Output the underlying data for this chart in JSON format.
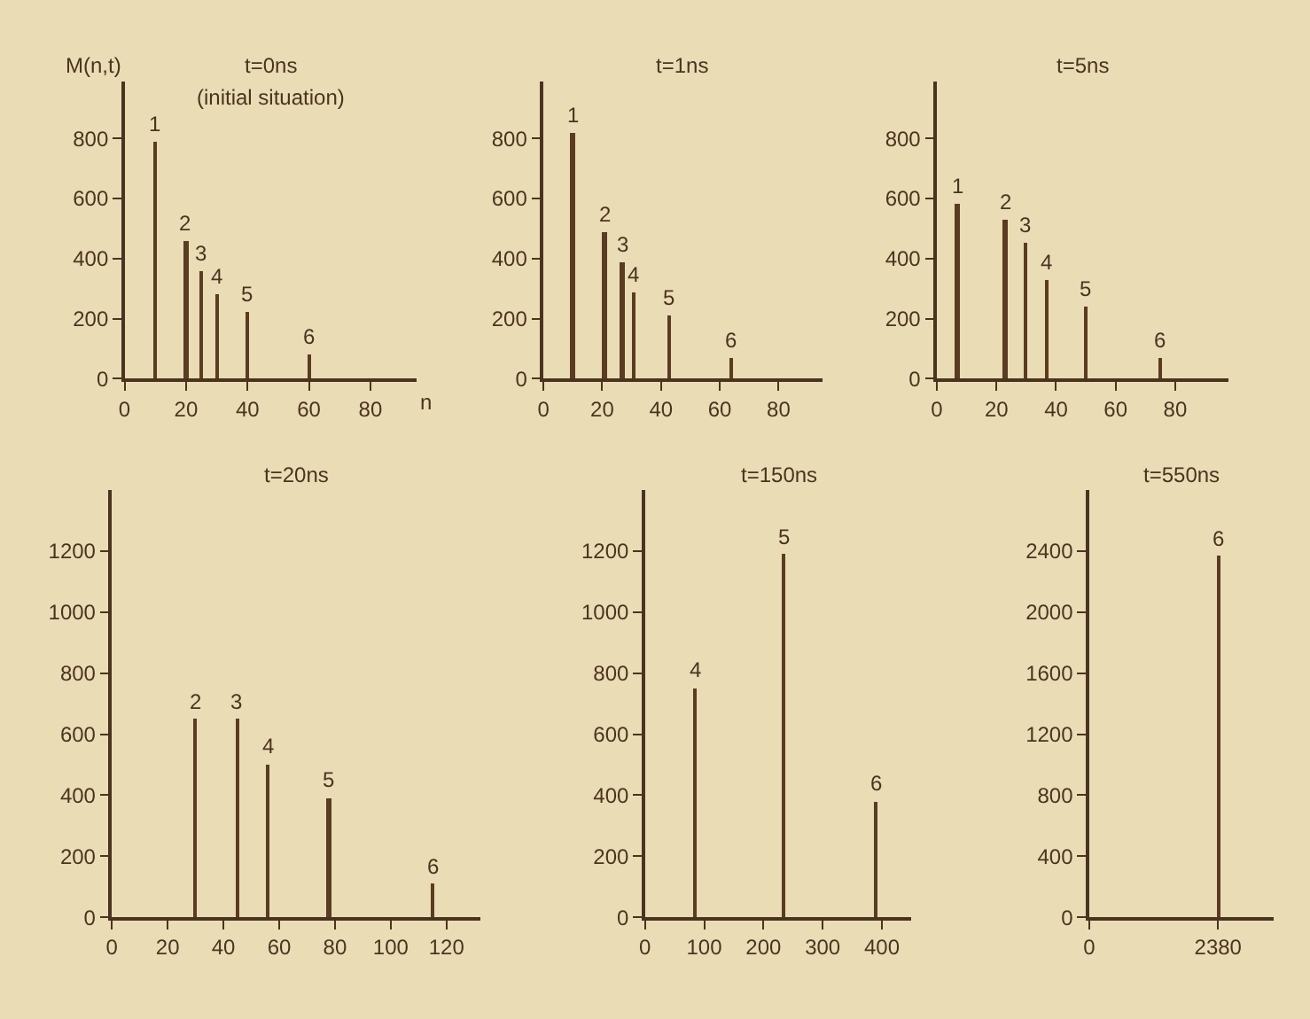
{
  "chart_data": [
    {
      "type": "bar",
      "title": "t=0ns",
      "subtitle": "(initial situation)",
      "xlabel": "n",
      "ylabel": "M(n,t)",
      "x": [
        10,
        20,
        25,
        30,
        40,
        60
      ],
      "values": [
        790,
        460,
        360,
        280,
        220,
        80
      ],
      "annotations": [
        {
          "text": "1",
          "x": 10,
          "y": 790
        },
        {
          "text": "2",
          "x": 20,
          "y": 460
        },
        {
          "text": "3",
          "x": 25,
          "y": 360
        },
        {
          "text": "4",
          "x": 30,
          "y": 280
        },
        {
          "text": "5",
          "x": 40,
          "y": 220
        },
        {
          "text": "6",
          "x": 60,
          "y": 80
        }
      ],
      "color": "#5a3c22",
      "xlim": [
        0,
        95
      ],
      "xticks": [
        0,
        20,
        40,
        60,
        80
      ],
      "ylim": [
        0,
        990
      ],
      "yticks": [
        0,
        200,
        400,
        600,
        800
      ],
      "grid": false
    },
    {
      "type": "bar",
      "title": "t=1ns",
      "x": [
        10,
        21,
        27,
        31,
        43,
        64
      ],
      "values": [
        820,
        490,
        390,
        285,
        210,
        70
      ],
      "annotations": [
        {
          "text": "1",
          "x": 10,
          "y": 820
        },
        {
          "text": "2",
          "x": 21,
          "y": 490
        },
        {
          "text": "3",
          "x": 27,
          "y": 390
        },
        {
          "text": "4",
          "x": 31,
          "y": 285
        },
        {
          "text": "5",
          "x": 43,
          "y": 210
        },
        {
          "text": "6",
          "x": 64,
          "y": 70
        }
      ],
      "color": "#5a3c22",
      "xlim": [
        0,
        95
      ],
      "xticks": [
        0,
        20,
        40,
        60,
        80
      ],
      "ylim": [
        0,
        990
      ],
      "yticks": [
        0,
        200,
        400,
        600,
        800
      ],
      "grid": false
    },
    {
      "type": "bar",
      "title": "t=5ns",
      "x": [
        7,
        23,
        30,
        37,
        50,
        75
      ],
      "values": [
        580,
        530,
        450,
        330,
        240,
        70
      ],
      "annotations": [
        {
          "text": "1",
          "x": 7,
          "y": 580
        },
        {
          "text": "2",
          "x": 23,
          "y": 530
        },
        {
          "text": "3",
          "x": 30,
          "y": 450
        },
        {
          "text": "4",
          "x": 37,
          "y": 330
        },
        {
          "text": "5",
          "x": 50,
          "y": 240
        },
        {
          "text": "6",
          "x": 75,
          "y": 70
        }
      ],
      "color": "#5a3c22",
      "xlim": [
        0,
        98
      ],
      "xticks": [
        0,
        20,
        40,
        60,
        80
      ],
      "ylim": [
        0,
        990
      ],
      "yticks": [
        0,
        200,
        400,
        600,
        800
      ],
      "grid": false
    },
    {
      "type": "bar",
      "title": "t=20ns",
      "x": [
        30,
        45,
        56,
        78,
        115
      ],
      "values": [
        650,
        650,
        500,
        390,
        110
      ],
      "annotations": [
        {
          "text": "2",
          "x": 30,
          "y": 650
        },
        {
          "text": "3",
          "x": 45,
          "y": 650
        },
        {
          "text": "4",
          "x": 56,
          "y": 500
        },
        {
          "text": "5",
          "x": 78,
          "y": 390
        },
        {
          "text": "6",
          "x": 115,
          "y": 110
        }
      ],
      "color": "#5a3c22",
      "xlim": [
        0,
        132
      ],
      "xticks": [
        0,
        20,
        40,
        60,
        80,
        100,
        120
      ],
      "ylim": [
        0,
        1400
      ],
      "yticks": [
        0,
        200,
        400,
        600,
        800,
        1000,
        1200
      ],
      "grid": false
    },
    {
      "type": "bar",
      "title": "t=150ns",
      "x": [
        85,
        235,
        390
      ],
      "values": [
        750,
        1190,
        380
      ],
      "annotations": [
        {
          "text": "4",
          "x": 85,
          "y": 750
        },
        {
          "text": "5",
          "x": 235,
          "y": 1190
        },
        {
          "text": "6",
          "x": 390,
          "y": 380
        }
      ],
      "color": "#5a3c22",
      "xlim": [
        0,
        450
      ],
      "xticks": [
        0,
        100,
        200,
        300,
        400
      ],
      "ylim": [
        0,
        1400
      ],
      "yticks": [
        0,
        200,
        400,
        600,
        800,
        1000,
        1200
      ],
      "grid": false
    },
    {
      "type": "bar",
      "title": "t=550ns",
      "x": [
        2380
      ],
      "values": [
        2370
      ],
      "annotations": [
        {
          "text": "6",
          "x": 2380,
          "y": 2370
        }
      ],
      "color": "#5a3c22",
      "xlim": [
        0,
        3400
      ],
      "xticks": [
        0,
        2380
      ],
      "ylim": [
        0,
        2800
      ],
      "yticks": [
        0,
        400,
        800,
        1200,
        1600,
        2000,
        2400
      ],
      "grid": false
    }
  ]
}
